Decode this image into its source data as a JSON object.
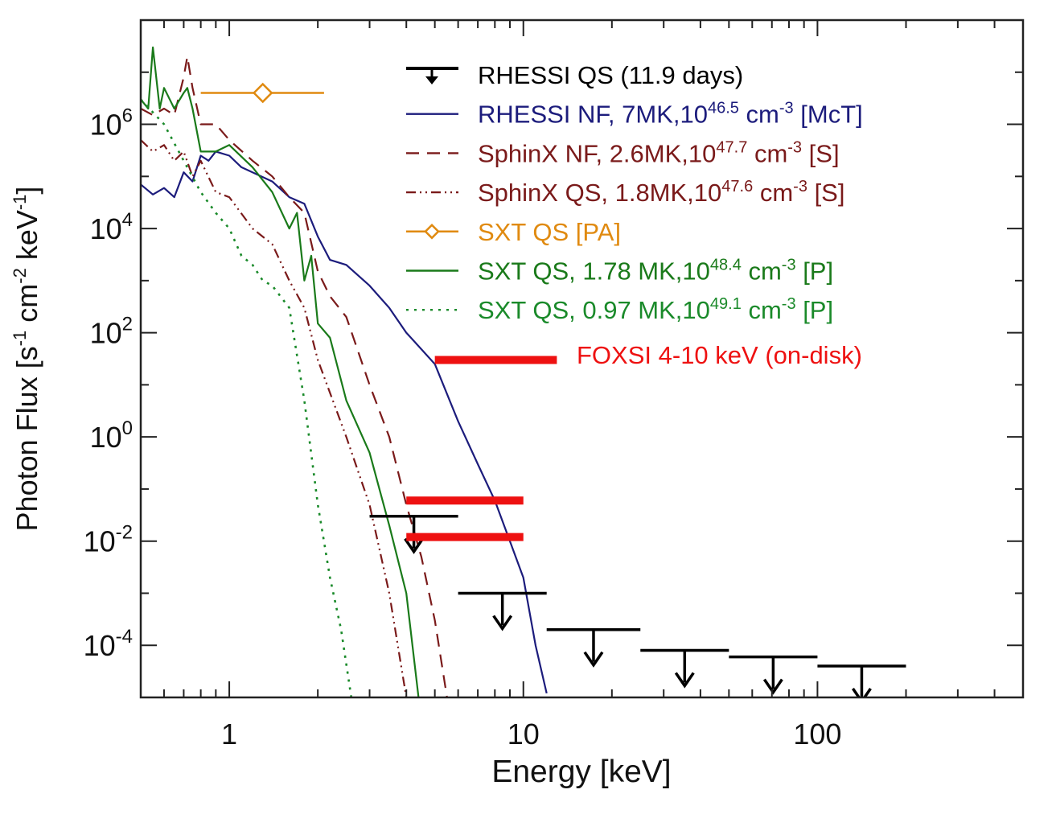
{
  "chart_data": {
    "type": "line",
    "xlabel": "Energy [keV]",
    "ylabel": {
      "main": "Photon Flux  [s",
      "e1": "-1",
      "mid1": " cm",
      "e2": "-2",
      "mid2": " keV",
      "e3": "-1",
      "end": "]"
    },
    "xscale": "log",
    "yscale": "log",
    "xlim": [
      0.5,
      500
    ],
    "ylim": [
      1e-05,
      100000000.0
    ],
    "xticks": [
      {
        "value": 1,
        "label": "1"
      },
      {
        "value": 10,
        "label": "10"
      },
      {
        "value": 100,
        "label": "100"
      }
    ],
    "yticks": [
      {
        "value": 1000000.0,
        "base": "10",
        "exp": "6"
      },
      {
        "value": 10000.0,
        "base": "10",
        "exp": "4"
      },
      {
        "value": 100.0,
        "base": "10",
        "exp": "2"
      },
      {
        "value": 1,
        "base": "10",
        "exp": "0"
      },
      {
        "value": 0.01,
        "base": "10",
        "exp": "-2"
      },
      {
        "value": 0.0001,
        "base": "10",
        "exp": "-4"
      }
    ],
    "legend_position": "top-right",
    "legend": [
      {
        "key": "rhessi_qs",
        "color": "#000000",
        "style": "upper-limit",
        "pre": "RHESSI QS (11.9 days)",
        "exp1": "",
        "mid": "",
        "exp2": "",
        "post": ""
      },
      {
        "key": "rhessi_nf",
        "color": "#1c1c7c",
        "style": "solid",
        "pre": "RHESSI NF, 7MK,10",
        "exp1": "46.5",
        "mid": " cm",
        "exp2": "-3",
        "post": " [McT]"
      },
      {
        "key": "sphinx_nf",
        "color": "#7a1a1a",
        "style": "dashed",
        "pre": "SphinX NF, 2.6MK,10",
        "exp1": "47.7",
        "mid": " cm",
        "exp2": "-3",
        "post": " [S]"
      },
      {
        "key": "sphinx_qs",
        "color": "#7a1a1a",
        "style": "dash-dot-dot",
        "pre": "SphinX QS, 1.8MK,10",
        "exp1": "47.6",
        "mid": " cm",
        "exp2": "-3",
        "post": " [S]"
      },
      {
        "key": "sxt_qs_pa",
        "color": "#e08a10",
        "style": "diamond-errorbar",
        "pre": "SXT QS [PA]",
        "exp1": "",
        "mid": "",
        "exp2": "",
        "post": ""
      },
      {
        "key": "sxt_qs_178",
        "color": "#1a7a1a",
        "style": "solid",
        "pre": "SXT QS, 1.78 MK,10",
        "exp1": "48.4",
        "mid": " cm",
        "exp2": "-3",
        "post": " [P]"
      },
      {
        "key": "sxt_qs_097",
        "color": "#1a8a2a",
        "style": "dotted",
        "pre": "SXT QS, 0.97 MK,10",
        "exp1": "49.1",
        "mid": " cm",
        "exp2": "-3",
        "post": " [P]"
      }
    ],
    "series": [
      {
        "key": "rhessi_nf",
        "color": "#1c1c7c",
        "dash": "",
        "width": 2.2,
        "x": [
          0.5,
          0.55,
          0.6,
          0.65,
          0.7,
          0.75,
          0.8,
          0.85,
          0.9,
          1.0,
          1.1,
          1.2,
          1.4,
          1.6,
          1.8,
          2.0,
          2.2,
          2.5,
          3,
          3.5,
          4,
          5,
          6,
          7,
          8,
          9,
          10,
          11,
          12
        ],
        "y": [
          70000,
          45000,
          60000,
          40000,
          120000,
          80000,
          250000,
          200000,
          300000,
          250000,
          150000,
          120000,
          80000,
          40000,
          30000,
          7000,
          2500,
          2000,
          800,
          300,
          100,
          25,
          2,
          0.3,
          0.06,
          0.01,
          0.002,
          0.0001,
          1.2e-05
        ]
      },
      {
        "key": "sphinx_nf",
        "color": "#7a1a1a",
        "dash": "16 10",
        "width": 2.2,
        "x": [
          0.5,
          0.55,
          0.6,
          0.65,
          0.7,
          0.72,
          0.75,
          0.8,
          0.9,
          1.0,
          1.2,
          1.4,
          1.6,
          1.8,
          2.0,
          2.2,
          2.5,
          3,
          3.5,
          4,
          4.5,
          5,
          5.5
        ],
        "y": [
          2000000,
          1500000,
          2000000,
          1500000,
          8000000,
          20000000,
          5000000,
          1000000,
          1000000,
          500000,
          200000,
          100000,
          40000,
          20000,
          1500,
          500,
          200,
          10,
          1,
          0.05,
          0.005,
          0.0003,
          1e-05
        ]
      },
      {
        "key": "sphinx_qs",
        "color": "#7a1a1a",
        "dash": "12 5 2 5 2 5",
        "width": 2.2,
        "x": [
          0.5,
          0.55,
          0.6,
          0.65,
          0.7,
          0.75,
          0.8,
          0.9,
          1.0,
          1.2,
          1.4,
          1.6,
          1.8,
          2.0,
          2.5,
          3,
          3.5,
          4
        ],
        "y": [
          500000,
          300000,
          400000,
          200000,
          300000,
          100000,
          200000,
          50000,
          40000,
          10000,
          5000,
          1000,
          300,
          30,
          1,
          0.05,
          0.001,
          1e-05
        ]
      },
      {
        "key": "sxt_qs_178",
        "color": "#1a7a1a",
        "dash": "",
        "width": 2.2,
        "x": [
          0.5,
          0.53,
          0.55,
          0.58,
          0.6,
          0.65,
          0.7,
          0.72,
          0.75,
          0.8,
          0.9,
          1.0,
          1.2,
          1.4,
          1.6,
          1.7,
          1.8,
          1.9,
          2.0,
          2.2,
          2.5,
          3,
          3.5,
          4,
          4.4
        ],
        "y": [
          3000000,
          2000000,
          30000000,
          2000000,
          5000000,
          2000000,
          4000000,
          5000000,
          2000000,
          300000,
          300000,
          400000,
          150000,
          50000,
          10000,
          20000,
          1000,
          3000,
          150,
          80,
          5,
          0.5,
          0.02,
          0.001,
          1e-05
        ]
      },
      {
        "key": "sxt_qs_097",
        "color": "#1a8a2a",
        "dash": "3 7",
        "width": 2.6,
        "x": [
          0.5,
          0.6,
          0.7,
          0.8,
          0.9,
          1.0,
          1.1,
          1.2,
          1.3,
          1.4,
          1.6,
          1.8,
          2.0,
          2.2,
          2.4,
          2.6
        ],
        "y": [
          3000000,
          1000000,
          200000,
          50000,
          20000,
          10000,
          3000,
          2000,
          1000,
          800,
          300,
          5,
          0.05,
          0.002,
          0.0002,
          1e-05
        ]
      }
    ],
    "sxt_pa_point": {
      "key": "sxt_qs_pa",
      "color": "#e08a10",
      "x": 1.3,
      "xmin": 0.8,
      "xmax": 2.1,
      "y": 4000000
    },
    "rhessi_upper_limits": [
      {
        "xmin": 3,
        "xmax": 6,
        "y": 0.03
      },
      {
        "xmin": 6,
        "xmax": 12,
        "y": 0.001
      },
      {
        "xmin": 12,
        "xmax": 25,
        "y": 0.0002
      },
      {
        "xmin": 25,
        "xmax": 50,
        "y": 8e-05
      },
      {
        "xmin": 50,
        "xmax": 100,
        "y": 6e-05
      },
      {
        "xmin": 100,
        "xmax": 200,
        "y": 4e-05
      }
    ],
    "foxsi": {
      "label": "FOXSI 4-10 keV (on-disk)",
      "color": "#ee1111",
      "bars": [
        {
          "xmin": 5,
          "xmax": 13,
          "y": 30
        },
        {
          "xmin": 4,
          "xmax": 10,
          "y": 0.06
        },
        {
          "xmin": 4,
          "xmax": 10,
          "y": 0.012
        }
      ]
    }
  }
}
